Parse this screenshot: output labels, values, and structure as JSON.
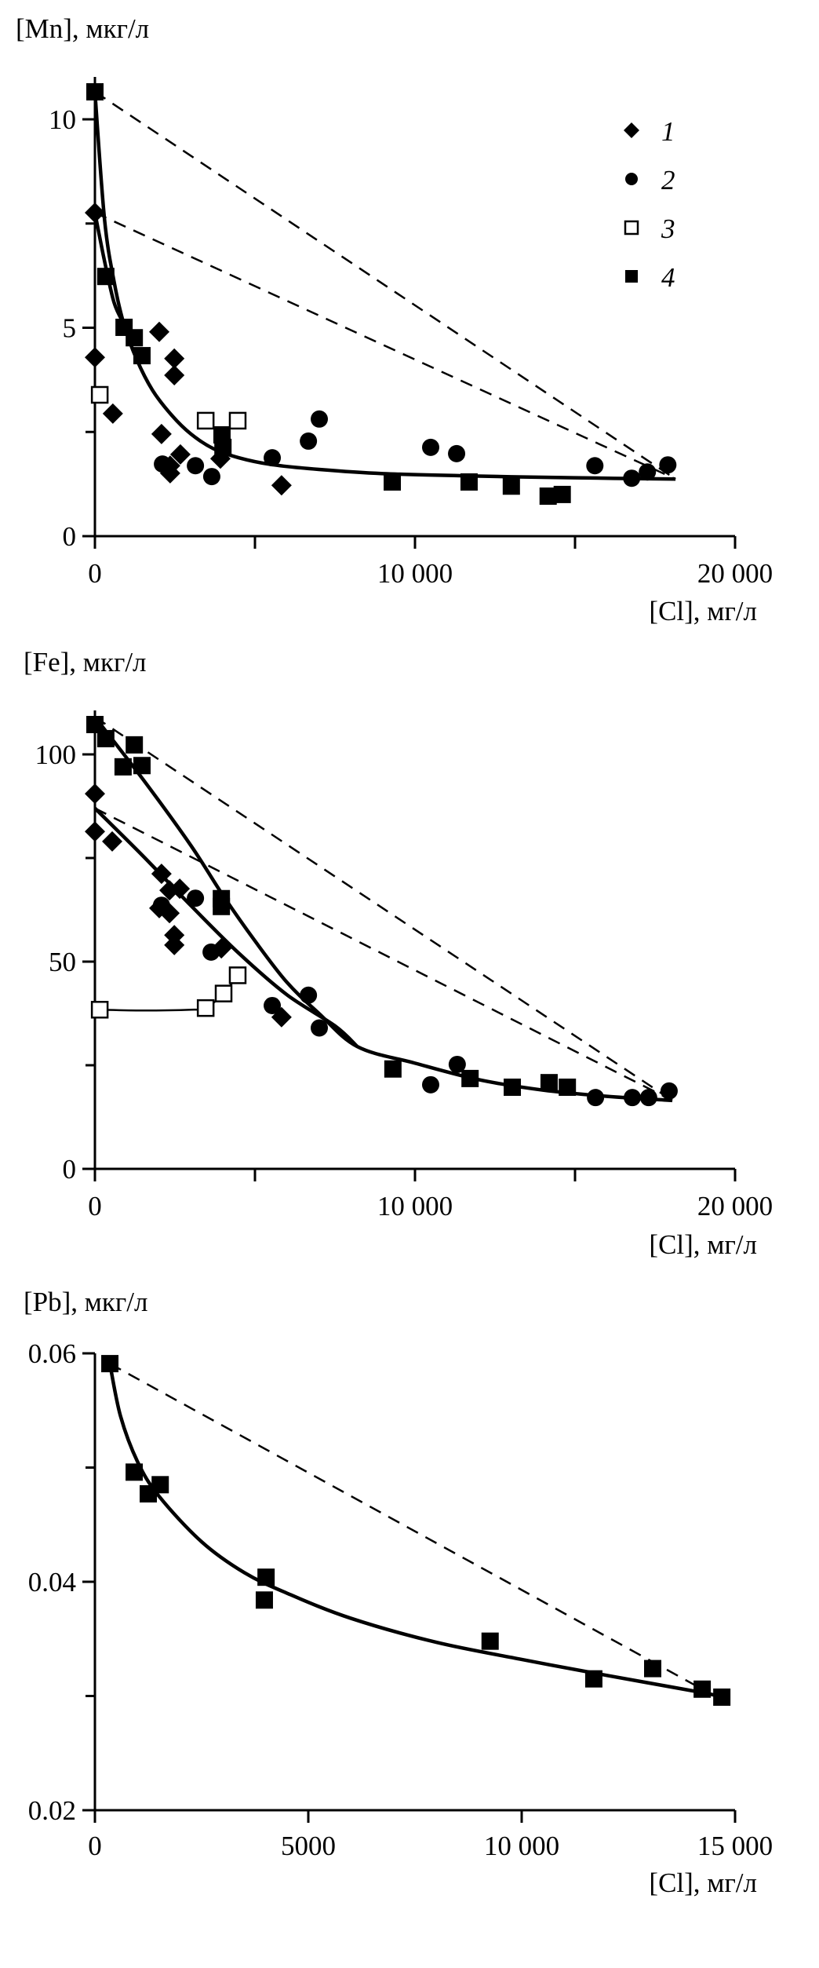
{
  "chart_data": [
    {
      "id": "mn",
      "type": "scatter",
      "title": "",
      "ylabel": "[Mn], мкг/л",
      "xlabel": "[Cl], мг/л",
      "xlim": [
        0,
        20000
      ],
      "ylim": [
        0,
        10.9
      ],
      "xticks": [
        0,
        5000,
        10000,
        15000,
        20000
      ],
      "xtick_labels": [
        "0",
        "",
        "10 000",
        "",
        "20 000"
      ],
      "yticks": [
        0,
        2.5,
        5,
        7.5,
        10
      ],
      "ytick_labels": [
        "0",
        "",
        "5",
        "",
        "10"
      ],
      "grid": false,
      "legend": {
        "placement": "top-right",
        "entries": [
          {
            "label": "1",
            "marker": "diamond-filled"
          },
          {
            "label": "2",
            "marker": "circle-filled"
          },
          {
            "label": "3",
            "marker": "square-open"
          },
          {
            "label": "4",
            "marker": "square-filled"
          }
        ]
      },
      "series": [
        {
          "name": "1",
          "marker": "diamond-filled",
          "points": [
            [
              0,
              7.76
            ],
            [
              0,
              4.29
            ],
            [
              560,
              2.94
            ],
            [
              2010,
              4.9
            ],
            [
              2480,
              4.26
            ],
            [
              2480,
              3.86
            ],
            [
              2080,
              2.45
            ],
            [
              2670,
              1.96
            ],
            [
              2350,
              1.69
            ],
            [
              2350,
              1.51
            ],
            [
              3920,
              1.86
            ],
            [
              5830,
              1.22
            ]
          ]
        },
        {
          "name": "2",
          "marker": "circle-filled",
          "points": [
            [
              2110,
              1.73
            ],
            [
              3140,
              1.69
            ],
            [
              3650,
              1.43
            ],
            [
              5540,
              1.88
            ],
            [
              6670,
              2.28
            ],
            [
              7010,
              2.81
            ],
            [
              10490,
              2.13
            ],
            [
              11300,
              1.98
            ],
            [
              15620,
              1.69
            ],
            [
              16770,
              1.39
            ],
            [
              17260,
              1.54
            ],
            [
              17900,
              1.71
            ]
          ]
        },
        {
          "name": "3",
          "marker": "square-open",
          "points": [
            [
              150,
              3.39
            ],
            [
              3460,
              2.77
            ],
            [
              4460,
              2.77
            ]
          ]
        },
        {
          "name": "4",
          "marker": "square-filled",
          "points": [
            [
              0,
              10.66
            ],
            [
              340,
              6.23
            ],
            [
              910,
              5.01
            ],
            [
              1230,
              4.76
            ],
            [
              1470,
              4.33
            ],
            [
              3970,
              2.43
            ],
            [
              4000,
              2.13
            ],
            [
              9290,
              1.3
            ],
            [
              11690,
              1.3
            ],
            [
              13010,
              1.2
            ],
            [
              14160,
              0.96
            ],
            [
              14600,
              1.0
            ]
          ]
        }
      ],
      "fit_curves": [
        {
          "name": "fit-4",
          "style": "solid",
          "points": [
            [
              0,
              10.66
            ],
            [
              300,
              7.6
            ],
            [
              600,
              6.1
            ],
            [
              900,
              5.1
            ],
            [
              1300,
              4.25
            ],
            [
              1800,
              3.5
            ],
            [
              2400,
              2.9
            ],
            [
              3000,
              2.45
            ],
            [
              3700,
              2.1
            ],
            [
              4500,
              1.88
            ],
            [
              5500,
              1.72
            ],
            [
              7000,
              1.6
            ],
            [
              9000,
              1.5
            ],
            [
              12000,
              1.44
            ],
            [
              15000,
              1.4
            ],
            [
              18140,
              1.37
            ]
          ]
        },
        {
          "name": "fit-1",
          "style": "solid",
          "points": [
            [
              0,
              7.76
            ],
            [
              300,
              6.6
            ],
            [
              600,
              5.6
            ],
            [
              900,
              5.1
            ]
          ]
        }
      ],
      "mixing_lines": [
        {
          "name": "mix-4",
          "style": "dashed",
          "points": [
            [
              0,
              10.66
            ],
            [
              18140,
              1.37
            ]
          ]
        },
        {
          "name": "mix-1",
          "style": "dashed",
          "points": [
            [
              0,
              7.76
            ],
            [
              18140,
              1.37
            ]
          ]
        }
      ]
    },
    {
      "id": "fe",
      "type": "scatter",
      "title": "",
      "ylabel": "[Fe], мкг/л",
      "xlabel": "[Cl], мг/л",
      "xlim": [
        0,
        20000
      ],
      "ylim": [
        0,
        110
      ],
      "xticks": [
        0,
        5000,
        10000,
        15000,
        20000
      ],
      "xtick_labels": [
        "0",
        "",
        "10 000",
        "",
        "20 000"
      ],
      "yticks": [
        0,
        25,
        50,
        75,
        100
      ],
      "ytick_labels": [
        "0",
        "",
        "50",
        "",
        "100"
      ],
      "grid": false,
      "series": [
        {
          "name": "1",
          "marker": "diamond-filled",
          "points": [
            [
              0,
              90.5
            ],
            [
              0,
              81.4
            ],
            [
              540,
              79.0
            ],
            [
              2080,
              71.2
            ],
            [
              2330,
              67.2
            ],
            [
              2650,
              67.6
            ],
            [
              2010,
              62.9
            ],
            [
              2330,
              61.7
            ],
            [
              2480,
              56.4
            ],
            [
              2480,
              54.0
            ],
            [
              3950,
              53.2
            ],
            [
              5830,
              36.6
            ]
          ]
        },
        {
          "name": "2",
          "marker": "circle-filled",
          "points": [
            [
              2080,
              63.6
            ],
            [
              3140,
              65.3
            ],
            [
              3630,
              52.3
            ],
            [
              5540,
              39.4
            ],
            [
              6670,
              41.9
            ],
            [
              7010,
              34.0
            ],
            [
              10490,
              20.3
            ],
            [
              11320,
              25.2
            ],
            [
              15640,
              17.2
            ],
            [
              16790,
              17.2
            ],
            [
              17300,
              17.2
            ],
            [
              17940,
              18.8
            ]
          ]
        },
        {
          "name": "3",
          "marker": "square-open",
          "points": [
            [
              150,
              38.4
            ],
            [
              3460,
              38.8
            ],
            [
              4020,
              42.3
            ],
            [
              4460,
              46.7
            ]
          ]
        },
        {
          "name": "4",
          "marker": "square-filled",
          "points": [
            [
              0,
              107.2
            ],
            [
              340,
              103.8
            ],
            [
              1230,
              102.3
            ],
            [
              880,
              97.0
            ],
            [
              1470,
              97.3
            ],
            [
              3950,
              65.2
            ],
            [
              3950,
              63.3
            ],
            [
              9310,
              24.1
            ],
            [
              11720,
              21.8
            ],
            [
              13040,
              19.7
            ],
            [
              14190,
              20.8
            ],
            [
              14760,
              19.7
            ]
          ]
        }
      ],
      "fit_curves": [
        {
          "name": "fit-4",
          "style": "solid",
          "points": [
            [
              0,
              109
            ],
            [
              1500,
              94
            ],
            [
              3000,
              78
            ],
            [
              4000,
              66
            ],
            [
              5000,
              55
            ],
            [
              6000,
              45
            ],
            [
              7000,
              37.5
            ],
            [
              8200,
              29.5
            ],
            [
              10000,
              25.5
            ],
            [
              12000,
              21.5
            ],
            [
              14000,
              19
            ],
            [
              16000,
              17.5
            ],
            [
              18040,
              16.5
            ]
          ]
        },
        {
          "name": "fit-1",
          "style": "solid",
          "points": [
            [
              0,
              87
            ],
            [
              1500,
              75.5
            ],
            [
              3000,
              63.5
            ],
            [
              4500,
              52
            ],
            [
              6000,
              42
            ],
            [
              7500,
              34.5
            ],
            [
              8200,
              29.5
            ]
          ]
        },
        {
          "name": "fit-3",
          "style": "solid-thin",
          "points": [
            [
              150,
              38.4
            ],
            [
              1500,
              38.2
            ],
            [
              3000,
              38.4
            ],
            [
              3460,
              38.8
            ],
            [
              4020,
              42.3
            ],
            [
              4460,
              46.7
            ]
          ]
        }
      ],
      "mixing_lines": [
        {
          "name": "mix-4",
          "style": "dashed",
          "points": [
            [
              0,
              109
            ],
            [
              18040,
              16.5
            ]
          ]
        },
        {
          "name": "mix-1",
          "style": "dashed",
          "points": [
            [
              0,
              87
            ],
            [
              18040,
              16.5
            ]
          ]
        }
      ]
    },
    {
      "id": "pb",
      "type": "scatter",
      "title": "",
      "ylabel": "[Pb], мкг/л",
      "xlabel": "[Cl], мг/л",
      "xlim": [
        0,
        15000
      ],
      "ylim": [
        0.02,
        0.06
      ],
      "xticks": [
        0,
        5000,
        10000,
        15000
      ],
      "xtick_labels": [
        "0",
        "5000",
        "10 000",
        "15 000"
      ],
      "yticks": [
        0.02,
        0.03,
        0.04,
        0.05,
        0.06
      ],
      "ytick_labels": [
        "0.02",
        "",
        "0.04",
        "",
        "0.06"
      ],
      "grid": false,
      "series": [
        {
          "name": "4",
          "marker": "square-filled",
          "points": [
            [
              350,
              0.0591
            ],
            [
              920,
              0.0496
            ],
            [
              1250,
              0.0477
            ],
            [
              1530,
              0.0485
            ],
            [
              4010,
              0.0404
            ],
            [
              3970,
              0.0384
            ],
            [
              9260,
              0.0348
            ],
            [
              11690,
              0.0315
            ],
            [
              13070,
              0.0324
            ],
            [
              14230,
              0.0306
            ],
            [
              14690,
              0.0299
            ]
          ]
        }
      ],
      "fit_curves": [
        {
          "name": "fit-4",
          "style": "solid",
          "points": [
            [
              350,
              0.0591
            ],
            [
              600,
              0.0545
            ],
            [
              1000,
              0.0505
            ],
            [
              1500,
              0.0475
            ],
            [
              2500,
              0.0435
            ],
            [
              3500,
              0.0408
            ],
            [
              4500,
              0.039
            ],
            [
              6000,
              0.0368
            ],
            [
              8000,
              0.0347
            ],
            [
              10000,
              0.0332
            ],
            [
              12000,
              0.0318
            ],
            [
              14230,
              0.0303
            ],
            [
              14690,
              0.0299
            ]
          ]
        }
      ],
      "mixing_lines": [
        {
          "name": "mix-4",
          "style": "dashed",
          "points": [
            [
              350,
              0.0591
            ],
            [
              14230,
              0.0306
            ]
          ]
        }
      ]
    }
  ]
}
